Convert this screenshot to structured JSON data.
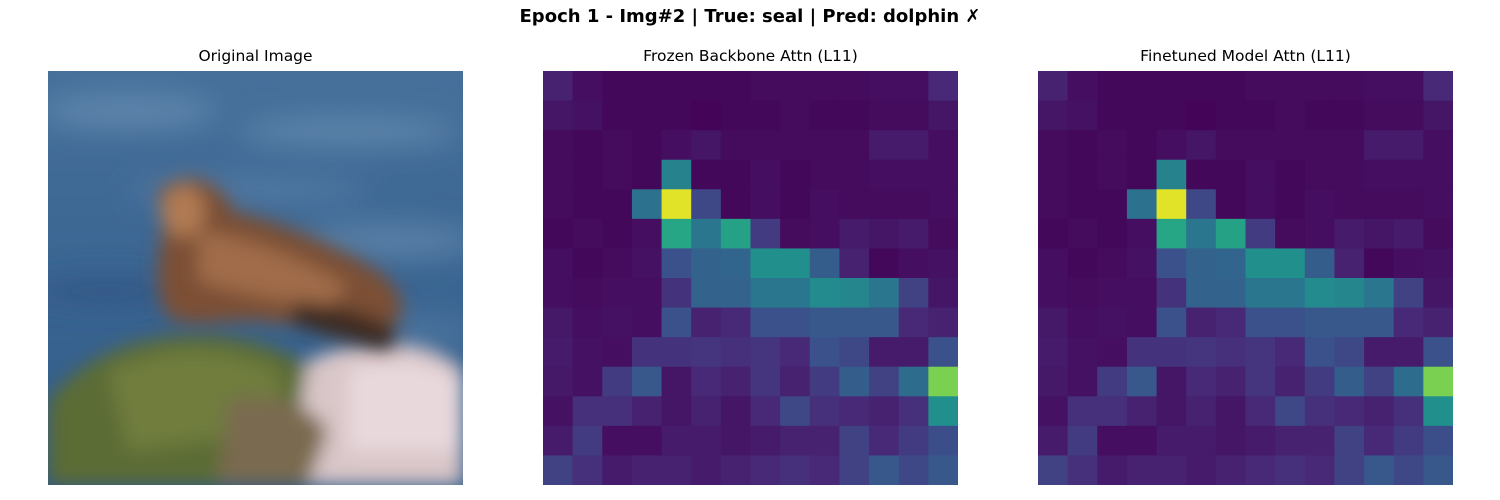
{
  "figure": {
    "title": "Epoch 1 - Img#2 | True: seal | Pred: dolphin ✗"
  },
  "panels": [
    {
      "title": "Original Image"
    },
    {
      "title": "Frozen Backbone Attn (L11)"
    },
    {
      "title": "Finetuned Model Attn (L11)"
    }
  ],
  "chart_data": [
    {
      "type": "image",
      "title": "Original Image",
      "description_colors": {
        "sea": "#3e6a94",
        "seal": "#7a5238",
        "rock_moss": "#5d6e35",
        "rock_light": "#d8c4c4"
      }
    },
    {
      "type": "heatmap",
      "title": "Frozen Backbone Attn (L11)",
      "colormap": "viridis",
      "rows": 14,
      "cols": 14,
      "values": [
        [
          0.1,
          0.04,
          0.02,
          0.02,
          0.02,
          0.02,
          0.02,
          0.03,
          0.03,
          0.03,
          0.03,
          0.04,
          0.04,
          0.12
        ],
        [
          0.06,
          0.05,
          0.02,
          0.02,
          0.02,
          0.01,
          0.02,
          0.02,
          0.03,
          0.02,
          0.02,
          0.03,
          0.03,
          0.06
        ],
        [
          0.03,
          0.02,
          0.03,
          0.02,
          0.04,
          0.06,
          0.03,
          0.03,
          0.03,
          0.03,
          0.03,
          0.08,
          0.08,
          0.04
        ],
        [
          0.03,
          0.02,
          0.03,
          0.02,
          0.45,
          0.02,
          0.02,
          0.04,
          0.02,
          0.03,
          0.03,
          0.04,
          0.04,
          0.04
        ],
        [
          0.03,
          0.02,
          0.02,
          0.38,
          0.96,
          0.22,
          0.02,
          0.04,
          0.02,
          0.04,
          0.03,
          0.03,
          0.03,
          0.04
        ],
        [
          0.02,
          0.03,
          0.02,
          0.04,
          0.6,
          0.4,
          0.58,
          0.18,
          0.03,
          0.04,
          0.08,
          0.06,
          0.08,
          0.03
        ],
        [
          0.04,
          0.02,
          0.03,
          0.05,
          0.25,
          0.32,
          0.33,
          0.5,
          0.5,
          0.3,
          0.1,
          0.02,
          0.04,
          0.05
        ],
        [
          0.04,
          0.03,
          0.04,
          0.04,
          0.15,
          0.32,
          0.32,
          0.4,
          0.4,
          0.48,
          0.46,
          0.4,
          0.2,
          0.06
        ],
        [
          0.07,
          0.04,
          0.05,
          0.04,
          0.25,
          0.1,
          0.12,
          0.25,
          0.25,
          0.28,
          0.28,
          0.28,
          0.12,
          0.1
        ],
        [
          0.08,
          0.05,
          0.04,
          0.15,
          0.15,
          0.16,
          0.14,
          0.16,
          0.12,
          0.25,
          0.22,
          0.08,
          0.08,
          0.25
        ],
        [
          0.07,
          0.05,
          0.18,
          0.28,
          0.06,
          0.12,
          0.1,
          0.16,
          0.1,
          0.18,
          0.3,
          0.2,
          0.36,
          0.8
        ],
        [
          0.05,
          0.14,
          0.14,
          0.1,
          0.06,
          0.1,
          0.06,
          0.12,
          0.22,
          0.14,
          0.12,
          0.1,
          0.14,
          0.5
        ],
        [
          0.08,
          0.18,
          0.04,
          0.04,
          0.08,
          0.08,
          0.06,
          0.08,
          0.1,
          0.1,
          0.2,
          0.12,
          0.18,
          0.24
        ],
        [
          0.2,
          0.14,
          0.08,
          0.1,
          0.1,
          0.08,
          0.1,
          0.12,
          0.14,
          0.12,
          0.2,
          0.28,
          0.22,
          0.28
        ]
      ]
    },
    {
      "type": "heatmap",
      "title": "Finetuned Model Attn (L11)",
      "colormap": "viridis",
      "rows": 14,
      "cols": 14,
      "values": [
        [
          0.1,
          0.04,
          0.02,
          0.02,
          0.02,
          0.02,
          0.02,
          0.03,
          0.03,
          0.03,
          0.03,
          0.04,
          0.04,
          0.12
        ],
        [
          0.06,
          0.05,
          0.02,
          0.02,
          0.02,
          0.01,
          0.02,
          0.02,
          0.03,
          0.02,
          0.02,
          0.03,
          0.03,
          0.06
        ],
        [
          0.03,
          0.02,
          0.03,
          0.02,
          0.04,
          0.06,
          0.03,
          0.03,
          0.03,
          0.03,
          0.03,
          0.08,
          0.08,
          0.04
        ],
        [
          0.03,
          0.02,
          0.03,
          0.02,
          0.45,
          0.02,
          0.02,
          0.04,
          0.02,
          0.03,
          0.03,
          0.04,
          0.04,
          0.04
        ],
        [
          0.03,
          0.02,
          0.02,
          0.38,
          0.96,
          0.22,
          0.02,
          0.04,
          0.02,
          0.04,
          0.03,
          0.03,
          0.03,
          0.04
        ],
        [
          0.02,
          0.03,
          0.02,
          0.04,
          0.6,
          0.4,
          0.58,
          0.18,
          0.03,
          0.04,
          0.08,
          0.06,
          0.08,
          0.03
        ],
        [
          0.04,
          0.02,
          0.03,
          0.05,
          0.25,
          0.32,
          0.33,
          0.5,
          0.5,
          0.3,
          0.1,
          0.02,
          0.04,
          0.05
        ],
        [
          0.04,
          0.03,
          0.04,
          0.04,
          0.15,
          0.32,
          0.32,
          0.4,
          0.4,
          0.48,
          0.46,
          0.4,
          0.2,
          0.06
        ],
        [
          0.07,
          0.04,
          0.05,
          0.04,
          0.25,
          0.1,
          0.12,
          0.25,
          0.25,
          0.28,
          0.28,
          0.28,
          0.12,
          0.1
        ],
        [
          0.08,
          0.05,
          0.04,
          0.15,
          0.15,
          0.16,
          0.14,
          0.16,
          0.12,
          0.25,
          0.22,
          0.08,
          0.08,
          0.25
        ],
        [
          0.07,
          0.05,
          0.18,
          0.28,
          0.06,
          0.12,
          0.1,
          0.16,
          0.1,
          0.18,
          0.3,
          0.2,
          0.36,
          0.8
        ],
        [
          0.05,
          0.14,
          0.14,
          0.1,
          0.06,
          0.1,
          0.06,
          0.12,
          0.22,
          0.14,
          0.12,
          0.1,
          0.14,
          0.5
        ],
        [
          0.08,
          0.18,
          0.04,
          0.04,
          0.08,
          0.08,
          0.06,
          0.08,
          0.1,
          0.1,
          0.2,
          0.12,
          0.18,
          0.24
        ],
        [
          0.2,
          0.14,
          0.08,
          0.1,
          0.1,
          0.08,
          0.1,
          0.12,
          0.14,
          0.12,
          0.2,
          0.28,
          0.22,
          0.28
        ]
      ]
    }
  ]
}
